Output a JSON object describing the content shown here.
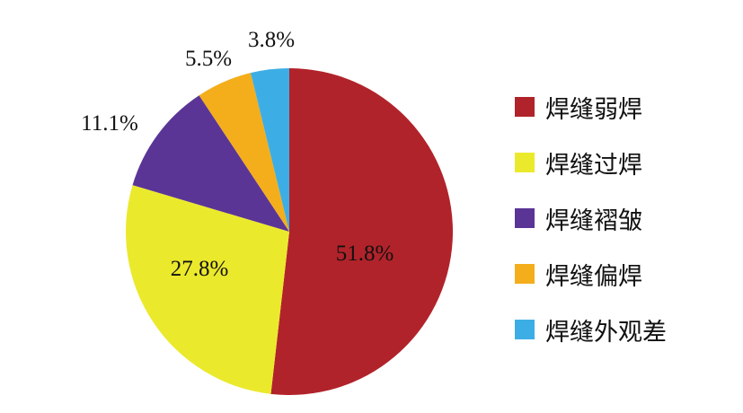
{
  "chart_data": {
    "type": "pie",
    "start": "top",
    "direction": "clockwise",
    "slices": [
      {
        "name": "焊缝弱焊",
        "value": 51.8,
        "label": "51.8%",
        "color": "#b1232a"
      },
      {
        "name": "焊缝过焊",
        "value": 27.8,
        "label": "27.8%",
        "color": "#ebe92c"
      },
      {
        "name": "焊缝褶皱",
        "value": 11.1,
        "label": "11.1%",
        "color": "#5a3596"
      },
      {
        "name": "焊缝偏焊",
        "value": 5.5,
        "label": "5.5%",
        "color": "#f4ae1b"
      },
      {
        "name": "焊缝外观差",
        "value": 3.8,
        "label": "3.8%",
        "color": "#3daee5"
      }
    ],
    "legend_position": "right"
  }
}
